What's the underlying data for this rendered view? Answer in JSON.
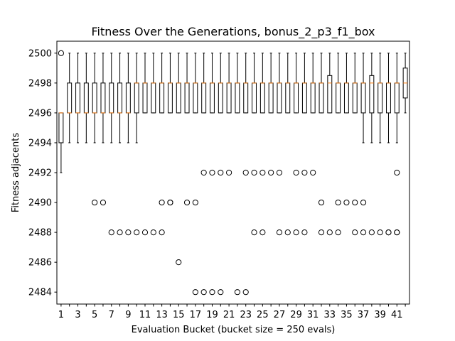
{
  "chart_data": {
    "type": "box",
    "title": "Fitness Over the Generations, bonus_2_p3_f1_box",
    "xlabel": "Evaluation Bucket (bucket size = 250 evals)",
    "ylabel": "Fitness adjacents",
    "ylim": [
      2483.2,
      2500.8
    ],
    "yticks": [
      2484,
      2486,
      2488,
      2490,
      2492,
      2494,
      2496,
      2498,
      2500
    ],
    "xticks": [
      1,
      3,
      5,
      7,
      9,
      11,
      13,
      15,
      17,
      19,
      21,
      23,
      25,
      27,
      29,
      31,
      33,
      35,
      37,
      39,
      41
    ],
    "grid": false,
    "colors": {
      "box": "#000000",
      "median": "#ff7f0e",
      "flier": "#000000"
    },
    "boxes": [
      {
        "bucket": 1,
        "whislo": 2492,
        "q1": 2494,
        "med": 2496,
        "q3": 2496,
        "whishi": 2496,
        "fliers": [
          2500
        ]
      },
      {
        "bucket": 2,
        "whislo": 2494,
        "q1": 2496,
        "med": 2496,
        "q3": 2498,
        "whishi": 2500,
        "fliers": []
      },
      {
        "bucket": 3,
        "whislo": 2494,
        "q1": 2496,
        "med": 2496,
        "q3": 2498,
        "whishi": 2500,
        "fliers": []
      },
      {
        "bucket": 4,
        "whislo": 2494,
        "q1": 2496,
        "med": 2496,
        "q3": 2498,
        "whishi": 2500,
        "fliers": []
      },
      {
        "bucket": 5,
        "whislo": 2494,
        "q1": 2496,
        "med": 2496,
        "q3": 2498,
        "whishi": 2500,
        "fliers": [
          2490
        ]
      },
      {
        "bucket": 6,
        "whislo": 2494,
        "q1": 2496,
        "med": 2496,
        "q3": 2498,
        "whishi": 2500,
        "fliers": [
          2490
        ]
      },
      {
        "bucket": 7,
        "whislo": 2494,
        "q1": 2496,
        "med": 2496,
        "q3": 2498,
        "whishi": 2500,
        "fliers": [
          2488
        ]
      },
      {
        "bucket": 8,
        "whislo": 2494,
        "q1": 2496,
        "med": 2496,
        "q3": 2498,
        "whishi": 2500,
        "fliers": [
          2488
        ]
      },
      {
        "bucket": 9,
        "whislo": 2494,
        "q1": 2496,
        "med": 2496,
        "q3": 2498,
        "whishi": 2500,
        "fliers": [
          2488
        ]
      },
      {
        "bucket": 10,
        "whislo": 2494,
        "q1": 2496,
        "med": 2498,
        "q3": 2498,
        "whishi": 2500,
        "fliers": [
          2488
        ]
      },
      {
        "bucket": 11,
        "whislo": 2496,
        "q1": 2496,
        "med": 2498,
        "q3": 2498,
        "whishi": 2500,
        "fliers": [
          2488
        ]
      },
      {
        "bucket": 12,
        "whislo": 2496,
        "q1": 2496,
        "med": 2498,
        "q3": 2498,
        "whishi": 2500,
        "fliers": [
          2488
        ]
      },
      {
        "bucket": 13,
        "whislo": 2496,
        "q1": 2496,
        "med": 2498,
        "q3": 2498,
        "whishi": 2500,
        "fliers": [
          2490,
          2488
        ]
      },
      {
        "bucket": 14,
        "whislo": 2496,
        "q1": 2496,
        "med": 2498,
        "q3": 2498,
        "whishi": 2500,
        "fliers": [
          2490,
          2490
        ]
      },
      {
        "bucket": 15,
        "whislo": 2496,
        "q1": 2496,
        "med": 2498,
        "q3": 2498,
        "whishi": 2500,
        "fliers": [
          2486
        ]
      },
      {
        "bucket": 16,
        "whislo": 2496,
        "q1": 2496,
        "med": 2498,
        "q3": 2498,
        "whishi": 2500,
        "fliers": [
          2490
        ]
      },
      {
        "bucket": 17,
        "whislo": 2496,
        "q1": 2496,
        "med": 2498,
        "q3": 2498,
        "whishi": 2500,
        "fliers": [
          2490,
          2484
        ]
      },
      {
        "bucket": 18,
        "whislo": 2496,
        "q1": 2496,
        "med": 2498,
        "q3": 2498,
        "whishi": 2500,
        "fliers": [
          2492,
          2484
        ]
      },
      {
        "bucket": 19,
        "whislo": 2496,
        "q1": 2496,
        "med": 2498,
        "q3": 2498,
        "whishi": 2500,
        "fliers": [
          2492,
          2484
        ]
      },
      {
        "bucket": 20,
        "whislo": 2496,
        "q1": 2496,
        "med": 2498,
        "q3": 2498,
        "whishi": 2500,
        "fliers": [
          2492,
          2484
        ]
      },
      {
        "bucket": 21,
        "whislo": 2496,
        "q1": 2496,
        "med": 2498,
        "q3": 2498,
        "whishi": 2500,
        "fliers": [
          2492
        ]
      },
      {
        "bucket": 22,
        "whislo": 2496,
        "q1": 2496,
        "med": 2498,
        "q3": 2498,
        "whishi": 2500,
        "fliers": [
          2484
        ]
      },
      {
        "bucket": 23,
        "whislo": 2496,
        "q1": 2496,
        "med": 2498,
        "q3": 2498,
        "whishi": 2500,
        "fliers": [
          2492,
          2484
        ]
      },
      {
        "bucket": 24,
        "whislo": 2496,
        "q1": 2496,
        "med": 2498,
        "q3": 2498,
        "whishi": 2500,
        "fliers": [
          2492,
          2488
        ]
      },
      {
        "bucket": 25,
        "whislo": 2496,
        "q1": 2496,
        "med": 2498,
        "q3": 2498,
        "whishi": 2500,
        "fliers": [
          2492,
          2488
        ]
      },
      {
        "bucket": 26,
        "whislo": 2496,
        "q1": 2496,
        "med": 2498,
        "q3": 2498,
        "whishi": 2500,
        "fliers": [
          2492
        ]
      },
      {
        "bucket": 27,
        "whislo": 2496,
        "q1": 2496,
        "med": 2498,
        "q3": 2498,
        "whishi": 2500,
        "fliers": [
          2492,
          2488
        ]
      },
      {
        "bucket": 28,
        "whislo": 2496,
        "q1": 2496,
        "med": 2498,
        "q3": 2498,
        "whishi": 2500,
        "fliers": [
          2488
        ]
      },
      {
        "bucket": 29,
        "whislo": 2496,
        "q1": 2496,
        "med": 2498,
        "q3": 2498,
        "whishi": 2500,
        "fliers": [
          2492,
          2488
        ]
      },
      {
        "bucket": 30,
        "whislo": 2496,
        "q1": 2496,
        "med": 2498,
        "q3": 2498,
        "whishi": 2500,
        "fliers": [
          2492,
          2488
        ]
      },
      {
        "bucket": 31,
        "whislo": 2496,
        "q1": 2496,
        "med": 2498,
        "q3": 2498,
        "whishi": 2500,
        "fliers": [
          2492
        ]
      },
      {
        "bucket": 32,
        "whislo": 2496,
        "q1": 2496,
        "med": 2498,
        "q3": 2498,
        "whishi": 2500,
        "fliers": [
          2490,
          2488
        ]
      },
      {
        "bucket": 33,
        "whislo": 2496,
        "q1": 2496,
        "med": 2498,
        "q3": 2498.5,
        "whishi": 2500,
        "fliers": [
          2488
        ]
      },
      {
        "bucket": 34,
        "whislo": 2496,
        "q1": 2496,
        "med": 2498,
        "q3": 2498,
        "whishi": 2500,
        "fliers": [
          2490,
          2488
        ]
      },
      {
        "bucket": 35,
        "whislo": 2496,
        "q1": 2496,
        "med": 2498,
        "q3": 2498,
        "whishi": 2500,
        "fliers": [
          2490
        ]
      },
      {
        "bucket": 36,
        "whislo": 2496,
        "q1": 2496,
        "med": 2498,
        "q3": 2498,
        "whishi": 2500,
        "fliers": [
          2490,
          2488
        ]
      },
      {
        "bucket": 37,
        "whislo": 2494,
        "q1": 2496,
        "med": 2498,
        "q3": 2498,
        "whishi": 2500,
        "fliers": [
          2490,
          2488
        ]
      },
      {
        "bucket": 38,
        "whislo": 2494,
        "q1": 2496,
        "med": 2498,
        "q3": 2498.5,
        "whishi": 2500,
        "fliers": [
          2488
        ]
      },
      {
        "bucket": 39,
        "whislo": 2494,
        "q1": 2496,
        "med": 2498,
        "q3": 2498,
        "whishi": 2500,
        "fliers": [
          2488
        ]
      },
      {
        "bucket": 40,
        "whislo": 2494,
        "q1": 2496,
        "med": 2498,
        "q3": 2498,
        "whishi": 2500,
        "fliers": [
          2488,
          2488
        ]
      },
      {
        "bucket": 41,
        "whislo": 2494,
        "q1": 2496,
        "med": 2498,
        "q3": 2498,
        "whishi": 2500,
        "fliers": [
          2492,
          2488,
          2488
        ]
      },
      {
        "bucket": 42,
        "whislo": 2496,
        "q1": 2497,
        "med": 2498,
        "q3": 2499,
        "whishi": 2500,
        "fliers": []
      }
    ]
  }
}
